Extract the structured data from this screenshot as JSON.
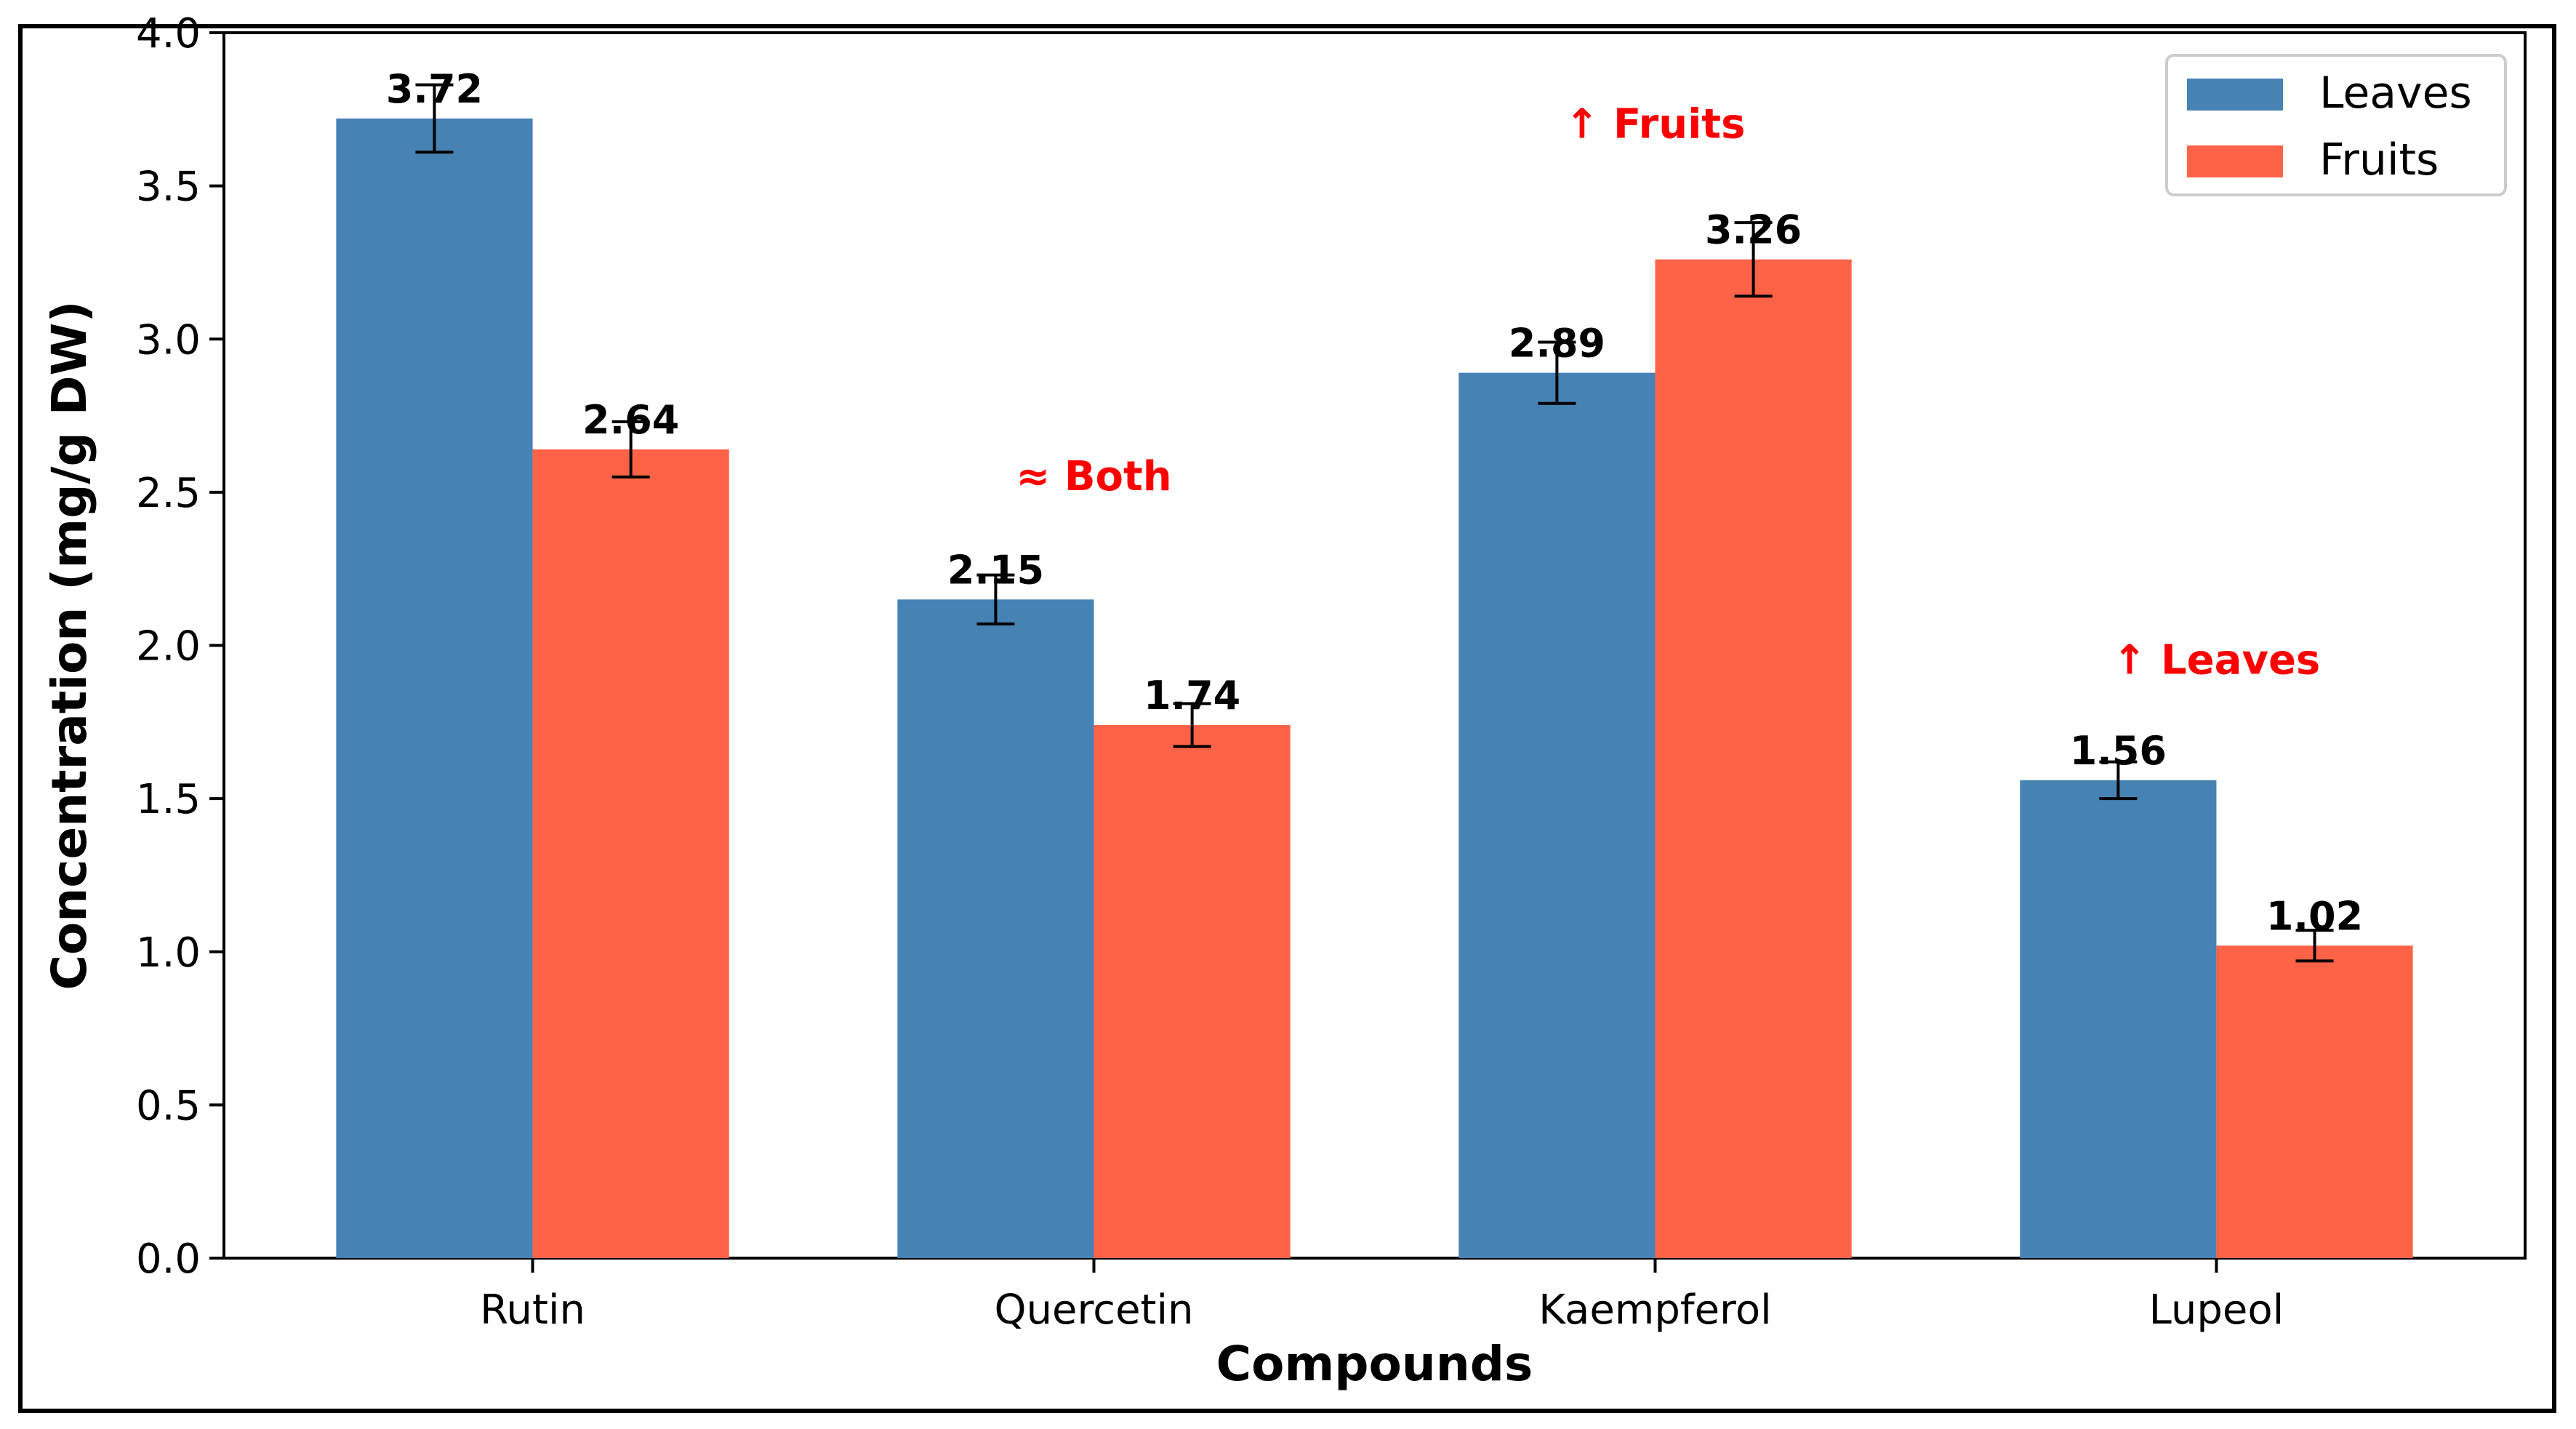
{
  "chart_data": {
    "type": "bar",
    "title": "",
    "xlabel": "Compounds",
    "ylabel": "Concentration (mg/g DW)",
    "categories": [
      "Rutin",
      "Quercetin",
      "Kaempferol",
      "Lupeol"
    ],
    "ylim": [
      0,
      4.0
    ],
    "yticks": [
      0.0,
      0.5,
      1.0,
      1.5,
      2.0,
      2.5,
      3.0,
      3.5,
      4.0
    ],
    "ytick_labels": [
      "0.0",
      "0.5",
      "1.0",
      "1.5",
      "2.0",
      "2.5",
      "3.0",
      "3.5",
      "4.0"
    ],
    "grid": false,
    "legend_position": "top-right",
    "series": [
      {
        "name": "Leaves",
        "color": "#4682b4",
        "values": [
          3.72,
          2.15,
          2.89,
          1.56
        ],
        "errors": [
          0.11,
          0.08,
          0.1,
          0.06
        ],
        "labels": [
          "3.72",
          "2.15",
          "2.89",
          "1.56"
        ]
      },
      {
        "name": "Fruits",
        "color": "#ff6347",
        "values": [
          2.64,
          1.74,
          3.26,
          1.02
        ],
        "errors": [
          0.09,
          0.07,
          0.12,
          0.05
        ],
        "labels": [
          "2.64",
          "1.74",
          "3.26",
          "1.02"
        ]
      }
    ],
    "annotations": [
      {
        "text": "≈ Both",
        "category_index": 1,
        "y": 2.55,
        "color": "#ff0000"
      },
      {
        "text": "↑ Fruits",
        "category_index": 2,
        "y": 3.7,
        "color": "#ff0000"
      },
      {
        "text": "↑ Leaves",
        "category_index": 3,
        "y": 1.95,
        "color": "#ff0000"
      }
    ]
  }
}
